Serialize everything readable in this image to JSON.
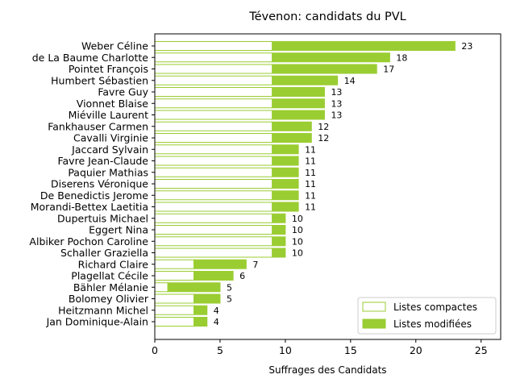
{
  "chart_data": {
    "type": "bar",
    "orientation": "horizontal",
    "stacked": true,
    "title": "Tévenon: candidats du PVL",
    "xlabel": "Suffrages des Candidats",
    "ylabel": "",
    "xlim": [
      0,
      26.5
    ],
    "xticks": [
      0,
      5,
      10,
      15,
      20,
      25
    ],
    "grid": false,
    "legend_position": "lower-right",
    "colors": {
      "compact": "#ffffff",
      "compact_edge": "#9acd32",
      "modified": "#9acd32"
    },
    "categories": [
      "Weber Céline",
      "de La Baume Charlotte",
      "Pointet François",
      "Humbert Sébastien",
      "Favre Guy",
      "Vionnet Blaise",
      "Miéville Laurent",
      "Fankhauser Carmen",
      "Cavalli Virginie",
      "Jaccard Sylvain",
      "Favre Jean-Claude",
      "Paquier Mathias",
      "Diserens Véronique",
      "De Benedictis Jerome",
      "Morandi-Bettex Laetitia",
      "Dupertuis Michael",
      "Eggert Nina",
      "Albiker Pochon Caroline",
      "Schaller Graziella",
      "Richard Claire",
      "Plagellat Cécile",
      "Bähler Mélanie",
      "Bolomey Olivier",
      "Heitzmann Michel",
      "Jan Dominique-Alain"
    ],
    "series": [
      {
        "name": "Listes compactes",
        "values": [
          9,
          9,
          9,
          9,
          9,
          9,
          9,
          9,
          9,
          9,
          9,
          9,
          9,
          9,
          9,
          9,
          9,
          9,
          9,
          3,
          3,
          1,
          3,
          3,
          3
        ]
      },
      {
        "name": "Listes modifiées",
        "values": [
          14,
          9,
          8,
          5,
          4,
          4,
          4,
          3,
          3,
          2,
          2,
          2,
          2,
          2,
          2,
          1,
          1,
          1,
          1,
          4,
          3,
          4,
          2,
          1,
          1
        ]
      }
    ],
    "totals": [
      23,
      18,
      17,
      14,
      13,
      13,
      13,
      12,
      12,
      11,
      11,
      11,
      11,
      11,
      11,
      10,
      10,
      10,
      10,
      7,
      6,
      5,
      5,
      4,
      4
    ]
  }
}
